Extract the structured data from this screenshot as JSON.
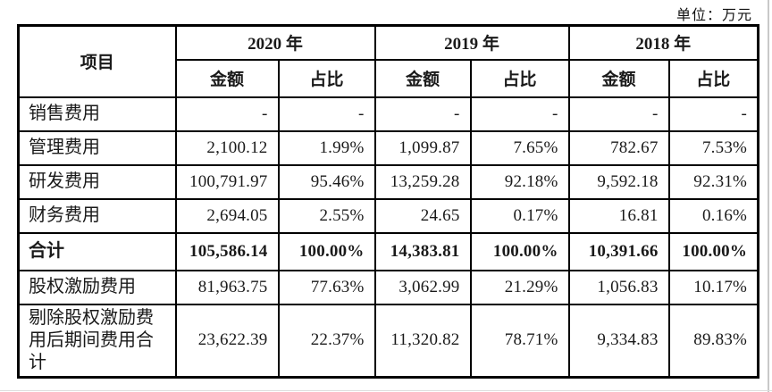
{
  "unit_label": "单位：万元",
  "table": {
    "item_header": "项目",
    "year_headers": [
      "2020 年",
      "2019 年",
      "2018 年"
    ],
    "sub_headers": [
      "金额",
      "占比"
    ],
    "rows": [
      {
        "label": "销售费用",
        "bold": false,
        "values": [
          "-",
          "-",
          "-",
          "-",
          "-",
          "-"
        ]
      },
      {
        "label": "管理费用",
        "bold": false,
        "values": [
          "2,100.12",
          "1.99%",
          "1,099.87",
          "7.65%",
          "782.67",
          "7.53%"
        ]
      },
      {
        "label": "研发费用",
        "bold": false,
        "values": [
          "100,791.97",
          "95.46%",
          "13,259.28",
          "92.18%",
          "9,592.18",
          "92.31%"
        ]
      },
      {
        "label": "财务费用",
        "bold": false,
        "values": [
          "2,694.05",
          "2.55%",
          "24.65",
          "0.17%",
          "16.81",
          "0.16%"
        ]
      },
      {
        "label": "合计",
        "bold": true,
        "values": [
          "105,586.14",
          "100.00%",
          "14,383.81",
          "100.00%",
          "10,391.66",
          "100.00%"
        ]
      },
      {
        "label": "股权激励费用",
        "bold": false,
        "values": [
          "81,963.75",
          "77.63%",
          "3,062.99",
          "21.29%",
          "1,056.83",
          "10.17%"
        ]
      },
      {
        "label": "剔除股权激励费用后期间费用合计",
        "bold": false,
        "tall": true,
        "values": [
          "23,622.39",
          "22.37%",
          "11,320.82",
          "78.71%",
          "9,334.83",
          "89.83%"
        ]
      }
    ]
  }
}
